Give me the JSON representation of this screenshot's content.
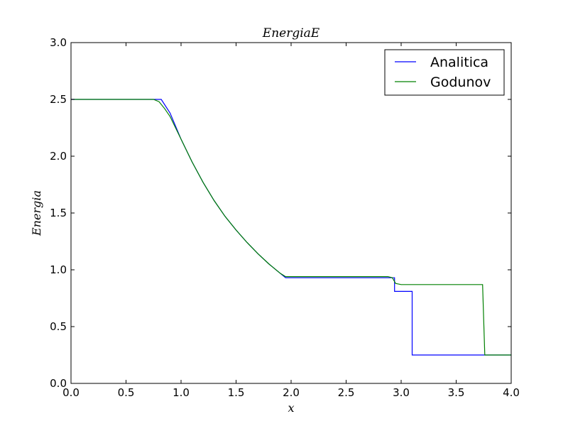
{
  "chart_data": {
    "type": "line",
    "title": "EnergiaE",
    "xlabel": "x",
    "ylabel": "Energia",
    "xlim": [
      0.0,
      4.0
    ],
    "ylim": [
      0.0,
      3.0
    ],
    "xticks": [
      "0.0",
      "0.5",
      "1.0",
      "1.5",
      "2.0",
      "2.5",
      "3.0",
      "3.5",
      "4.0"
    ],
    "yticks": [
      "0.0",
      "0.5",
      "1.0",
      "1.5",
      "2.0",
      "2.5",
      "3.0"
    ],
    "grid": false,
    "legend_position": "top-right",
    "series": [
      {
        "name": "Analitica",
        "color": "#0000ff",
        "points": [
          [
            0.0,
            2.5
          ],
          [
            0.82,
            2.5
          ],
          [
            0.9,
            2.38
          ],
          [
            1.0,
            2.15
          ],
          [
            1.1,
            1.95
          ],
          [
            1.2,
            1.77
          ],
          [
            1.3,
            1.61
          ],
          [
            1.4,
            1.47
          ],
          [
            1.5,
            1.35
          ],
          [
            1.6,
            1.24
          ],
          [
            1.7,
            1.14
          ],
          [
            1.8,
            1.05
          ],
          [
            1.9,
            0.97
          ],
          [
            1.95,
            0.93
          ],
          [
            2.94,
            0.93
          ],
          [
            2.94,
            0.81
          ],
          [
            3.1,
            0.81
          ],
          [
            3.1,
            0.25
          ],
          [
            4.0,
            0.25
          ]
        ]
      },
      {
        "name": "Godunov",
        "color": "#008000",
        "points": [
          [
            0.0,
            2.5
          ],
          [
            0.75,
            2.5
          ],
          [
            0.8,
            2.48
          ],
          [
            0.85,
            2.42
          ],
          [
            0.9,
            2.35
          ],
          [
            1.0,
            2.15
          ],
          [
            1.1,
            1.95
          ],
          [
            1.2,
            1.77
          ],
          [
            1.3,
            1.61
          ],
          [
            1.4,
            1.47
          ],
          [
            1.5,
            1.35
          ],
          [
            1.6,
            1.24
          ],
          [
            1.7,
            1.14
          ],
          [
            1.8,
            1.05
          ],
          [
            1.9,
            0.97
          ],
          [
            1.95,
            0.94
          ],
          [
            2.88,
            0.94
          ],
          [
            2.92,
            0.93
          ],
          [
            2.95,
            0.88
          ],
          [
            3.0,
            0.87
          ],
          [
            3.74,
            0.87
          ],
          [
            3.76,
            0.25
          ],
          [
            4.0,
            0.25
          ]
        ]
      }
    ]
  }
}
